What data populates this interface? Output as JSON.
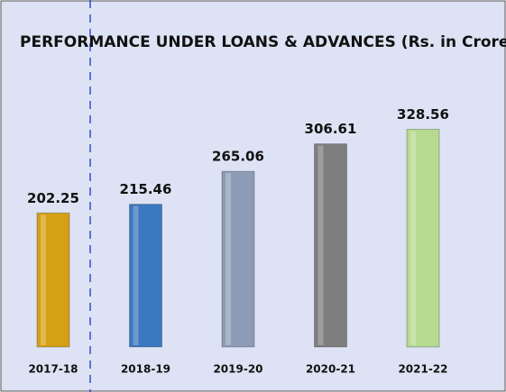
{
  "chart_data": {
    "type": "bar",
    "title": "PERFORMANCE UNDER LOANS & ADVANCES (Rs. in Crore)",
    "categories": [
      "2017-18",
      "2018-19",
      "2019-20",
      "2020-21",
      "2021-22"
    ],
    "values": [
      202.25,
      215.46,
      265.06,
      306.61,
      328.56
    ],
    "colors": [
      "#d4a015",
      "#3b78c0",
      "#8c9cb6",
      "#7e7e7e",
      "#b6da8f"
    ]
  }
}
